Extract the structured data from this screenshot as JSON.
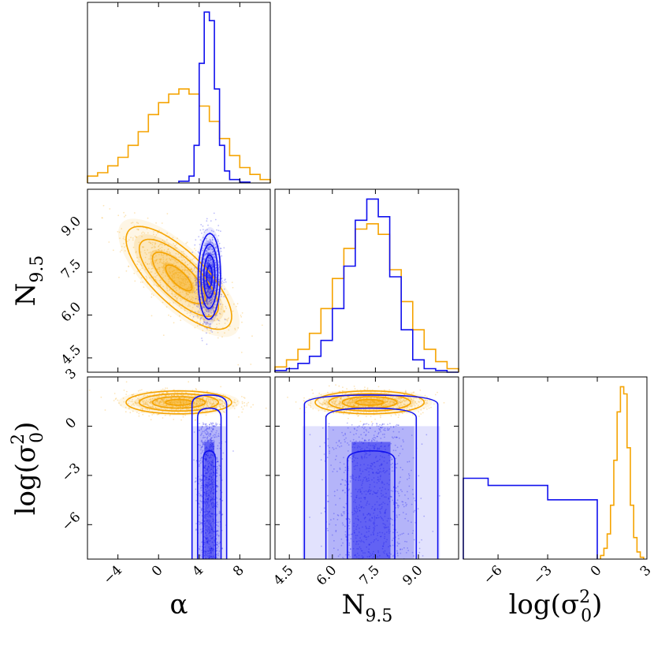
{
  "chart_data": {
    "type": "corner",
    "title": "",
    "parameters": [
      {
        "key": "alpha",
        "label": "α",
        "sub": "",
        "range": [
          -7,
          11
        ],
        "ticks": [
          -4,
          0,
          4,
          8
        ],
        "tick_labels": [
          "−4",
          "0",
          "4",
          "8"
        ]
      },
      {
        "key": "N95",
        "label": "N",
        "sub": "9.5",
        "range": [
          4.0,
          10.4
        ],
        "ticks": [
          4.5,
          6.0,
          7.5,
          9.0
        ],
        "tick_labels": [
          "4.5",
          "6.0",
          "7.5",
          "9.0"
        ]
      },
      {
        "key": "logsig",
        "label": "log(σ",
        "sup": "2",
        "sub": "0",
        "tail": ")",
        "range": [
          -8.1,
          3.0
        ],
        "ticks": [
          -6,
          -3,
          0,
          3
        ],
        "tick_labels": [
          "−6",
          "−3",
          "0",
          "3"
        ]
      }
    ],
    "series": [
      {
        "name": "orange",
        "color": "#f5a300",
        "marginals": {
          "alpha": {
            "edges": [
              -7,
              -6,
              -5,
              -4,
              -3,
              -2,
              -1,
              0,
              1,
              2,
              3,
              4,
              5,
              6,
              7,
              8,
              9,
              10,
              11
            ],
            "counts": [
              0.04,
              0.06,
              0.1,
              0.15,
              0.22,
              0.3,
              0.4,
              0.47,
              0.52,
              0.55,
              0.52,
              0.45,
              0.36,
              0.26,
              0.16,
              0.09,
              0.05,
              0.02
            ]
          },
          "N95": {
            "edges": [
              4.0,
              4.4,
              4.8,
              5.2,
              5.6,
              6.0,
              6.4,
              6.8,
              7.2,
              7.6,
              8.0,
              8.4,
              8.8,
              9.2,
              9.6,
              10.0,
              10.4
            ],
            "counts": [
              0.03,
              0.07,
              0.13,
              0.22,
              0.36,
              0.53,
              0.7,
              0.81,
              0.84,
              0.78,
              0.58,
              0.4,
              0.24,
              0.13,
              0.06,
              0.02
            ]
          },
          "logsig": {
            "edges": [
              0.2,
              0.4,
              0.6,
              0.8,
              1.0,
              1.2,
              1.4,
              1.6,
              1.8,
              2.0,
              2.2,
              2.4,
              2.6,
              2.8
            ],
            "counts": [
              0.02,
              0.06,
              0.14,
              0.3,
              0.55,
              0.82,
              0.96,
              0.92,
              0.62,
              0.3,
              0.12,
              0.04,
              0.01
            ]
          }
        },
        "joint": {
          "alpha_N95": {
            "mean": [
              2.0,
              7.3
            ],
            "sd": [
              2.6,
              0.9
            ],
            "corr": -0.75
          },
          "alpha_logsig": {
            "mean": [
              2.0,
              1.45
            ],
            "sd": [
              2.6,
              0.35
            ],
            "corr": 0.0
          },
          "N95_logsig": {
            "mean": [
              7.3,
              1.45
            ],
            "sd": [
              0.95,
              0.35
            ],
            "corr": 0.0
          }
        }
      },
      {
        "name": "blue",
        "color": "#1010ee",
        "marginals": {
          "alpha": {
            "edges": [
              2,
              3,
              3.5,
              4,
              4.5,
              5,
              5.5,
              6,
              6.5,
              7,
              8,
              9
            ],
            "counts": [
              0.01,
              0.04,
              0.22,
              0.7,
              1.0,
              0.95,
              0.55,
              0.22,
              0.07,
              0.02,
              0.005
            ]
          },
          "N95": {
            "edges": [
              4.0,
              4.4,
              4.8,
              5.2,
              5.6,
              6.0,
              6.4,
              6.8,
              7.2,
              7.6,
              8.0,
              8.4,
              8.8,
              9.2,
              9.6,
              10.0,
              10.4
            ],
            "counts": [
              0.01,
              0.02,
              0.05,
              0.09,
              0.18,
              0.36,
              0.6,
              0.86,
              0.98,
              0.88,
              0.54,
              0.24,
              0.07,
              0.02,
              0.01,
              0.0
            ]
          },
          "logsig": {
            "edges": [
              -8.1,
              -6.6,
              -3.0,
              0.0
            ],
            "counts": [
              0.45,
              0.41,
              0.33
            ]
          }
        },
        "joint": {
          "alpha_N95": {
            "mean": [
              5.0,
              7.35
            ],
            "sd": [
              0.55,
              0.75
            ],
            "corr": 0.05
          },
          "alpha_logsig": {
            "mean": [
              5.0,
              -3.5
            ],
            "sd": [
              0.55,
              3.2
            ],
            "corr": 0.0
          },
          "N95_logsig": {
            "mean": [
              7.35,
              -3.5
            ],
            "sd": [
              0.75,
              3.2
            ],
            "corr": 0.0
          }
        }
      }
    ]
  }
}
